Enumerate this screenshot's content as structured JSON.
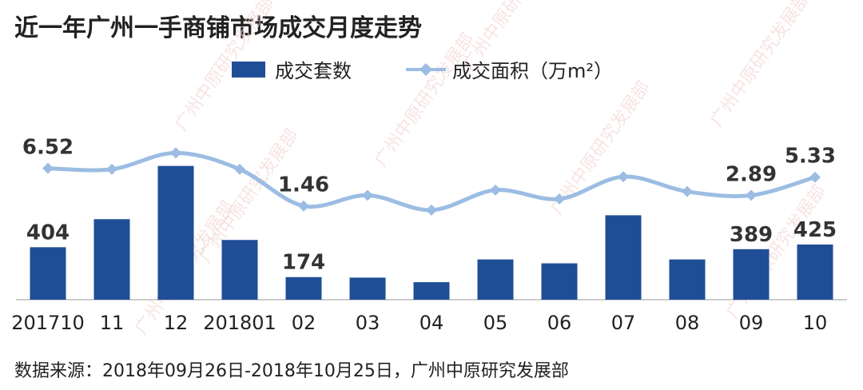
{
  "title": "近一年广州一手商铺市场成交月度走势",
  "source_note": "数据来源：2018年09月26日-2018年10月25日，广州中原研究发展部",
  "watermark": "广州中原研究发展部",
  "chart_data": {
    "type": "bar",
    "categories": [
      "201710",
      "11",
      "12",
      "201801",
      "02",
      "03",
      "04",
      "05",
      "06",
      "07",
      "08",
      "09",
      "10"
    ],
    "series": [
      {
        "name": "成交套数",
        "type": "bar",
        "color": "#1f4e96",
        "values": [
          404,
          620,
          1030,
          460,
          174,
          170,
          135,
          310,
          280,
          650,
          310,
          389,
          425
        ],
        "labeled_values": [
          "404",
          "",
          "",
          "",
          "174",
          "",
          "",
          "",
          "",
          "",
          "",
          "389",
          "425"
        ]
      },
      {
        "name": "成交面积（万m²）",
        "type": "line",
        "color": "#9cbde3",
        "values": [
          6.52,
          6.4,
          8.6,
          6.4,
          1.46,
          2.9,
          0.9,
          3.6,
          2.4,
          5.4,
          3.4,
          2.89,
          5.33
        ],
        "labeled_values": [
          "6.52",
          "",
          "",
          "",
          "1.46",
          "",
          "",
          "",
          "",
          "",
          "",
          "2.89",
          "5.33"
        ]
      }
    ],
    "legend_position": "top",
    "grid": false
  }
}
